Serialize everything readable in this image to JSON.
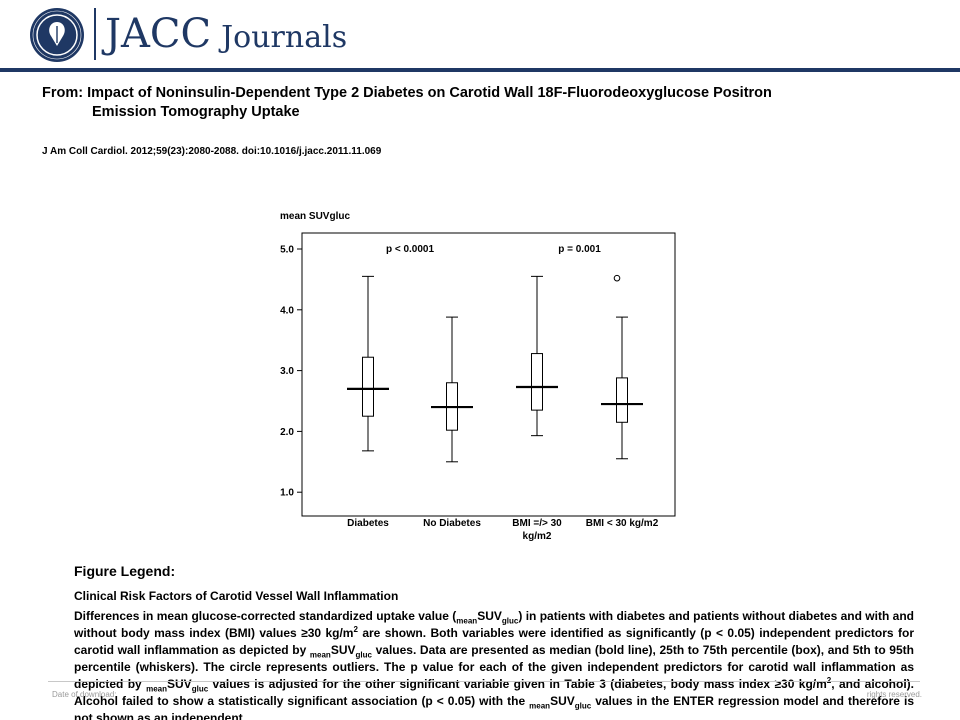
{
  "header": {
    "journal_name": "JACC",
    "journal_word": "Journals",
    "colors": {
      "brand": "#1f3864"
    }
  },
  "article": {
    "from_line_1": "From: Impact of Noninsulin-Dependent Type 2 Diabetes on Carotid Wall 18F-Fluorodeoxyglucose Positron",
    "from_line_2": "Emission Tomography Uptake",
    "citation": "J Am Coll Cardiol. 2012;59(23):2080-2088. doi:10.1016/j.jacc.2011.11.069"
  },
  "chart_data": {
    "type": "boxplot",
    "ylabel": "mean SUVgluc",
    "ylim": [
      0.7,
      5.2
    ],
    "yticks": [
      "1.0",
      "2.0",
      "3.0",
      "4.0",
      "5.0"
    ],
    "grid": false,
    "annotations": [
      {
        "text": "p < 0.0001",
        "x_between": [
          0,
          1
        ],
        "y": 5.0
      },
      {
        "text": "p = 0.001",
        "x_between": [
          2,
          3
        ],
        "y": 5.0
      }
    ],
    "categories": [
      "Diabetes",
      "No Diabetes",
      "BMI =/> 30 kg/m2",
      "BMI < 30 kg/m2"
    ],
    "series": [
      {
        "category": "Diabetes",
        "whisker_low": 1.68,
        "q1": 2.25,
        "median": 2.7,
        "q3": 3.22,
        "whisker_high": 4.55,
        "outliers": []
      },
      {
        "category": "No Diabetes",
        "whisker_low": 1.5,
        "q1": 2.02,
        "median": 2.4,
        "q3": 2.8,
        "whisker_high": 3.88,
        "outliers": []
      },
      {
        "category": "BMI =/> 30 kg/m2",
        "whisker_low": 1.93,
        "q1": 2.35,
        "median": 2.73,
        "q3": 3.28,
        "whisker_high": 4.55,
        "outliers": []
      },
      {
        "category": "BMI < 30 kg/m2",
        "whisker_low": 1.55,
        "q1": 2.15,
        "median": 2.45,
        "q3": 2.88,
        "whisker_high": 3.88,
        "outliers": [
          4.52
        ]
      }
    ]
  },
  "chart_labels": {
    "cat1": "Diabetes",
    "cat2": "No Diabetes",
    "cat3_line1": "BMI =/> 30",
    "cat3_line2": "kg/m2",
    "cat4": "BMI < 30 kg/m2"
  },
  "legend": {
    "heading": "Figure Legend:",
    "title": "Clinical Risk Factors of Carotid Vessel Wall Inflammation",
    "t1": "Differences in mean glucose-corrected standardized uptake value (",
    "t2": "mean",
    "t3": "SUV",
    "t4": "gluc",
    "t5": ") in patients with diabetes and patients without diabetes and with and without body mass index (BMI) values ≥30 kg/m",
    "t6": "2",
    "t7": " are shown. Both variables were identified as significantly (p < 0.05) independent predictors for carotid wall inflammation as depicted by ",
    "t8": "mean",
    "t9": "SUV",
    "t10": "gluc",
    "t11": " values. Data are presented as median (bold line), 25th to 75th percentile (box), and 5th to 95th percentile (whiskers). The circle represents outliers. The p value for each of the given independent predictors for carotid wall inflammation as depicted by ",
    "t12": "mean",
    "t13": "SUV",
    "t14": "gluc",
    "t15": " values is adjusted for the other significant variable given in Table 3 (diabetes, body mass index ≥30 kg/m",
    "t16": "2",
    "t17": ", and alcohol). Alcohol failed to show a statistically significant association (p < 0.05) with the ",
    "t18": "mean",
    "t19": "SUV",
    "t20": "gluc",
    "t21": " values in the ENTER regression model and therefore is not shown as an independent"
  },
  "footer": {
    "left": "Date of download:",
    "right": "rights reserved."
  }
}
